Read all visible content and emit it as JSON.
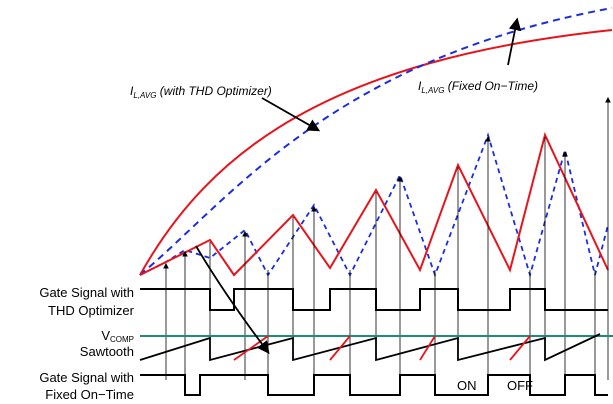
{
  "annotations": {
    "thd": {
      "prefix": "I",
      "sub": "L,AVG",
      "suffix": " (with THD Optimizer)"
    },
    "fixed": {
      "prefix": "I",
      "sub": "L,AVG",
      "suffix": " (Fixed On−Time)"
    }
  },
  "labels": {
    "gate_thd_line1": "Gate Signal with",
    "gate_thd_line2": "THD Optimizer",
    "vcomp_main": "V",
    "vcomp_sub": "COMP",
    "sawtooth": "Sawtooth",
    "gate_fixed_line1": "Gate Signal with",
    "gate_fixed_line2": "Fixed On−Time",
    "on": "ON",
    "off": "OFF"
  },
  "colors": {
    "thd_current": "#e8141c",
    "fixed_current": "#1a2ee0",
    "vcomp": "#1e8c7c",
    "signal": "#000000"
  }
}
